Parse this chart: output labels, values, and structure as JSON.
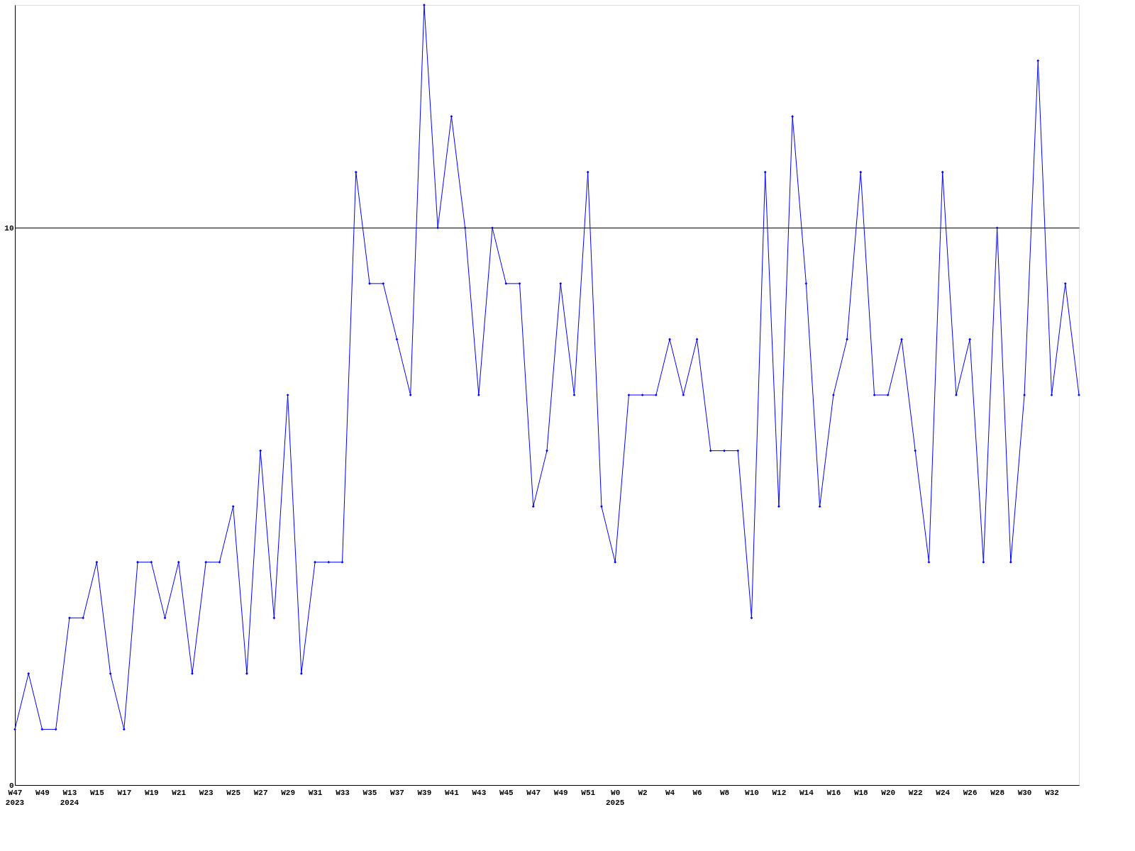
{
  "chart_data": {
    "type": "line",
    "categories": [
      "W47\n2023",
      null,
      "W49",
      null,
      "W13\n2024",
      null,
      "W15",
      null,
      "W17",
      null,
      "W19",
      null,
      "W21",
      null,
      "W23",
      null,
      "W25",
      null,
      "W27",
      null,
      "W29",
      null,
      "W31",
      null,
      "W33",
      null,
      "W35",
      null,
      "W37",
      null,
      "W39",
      null,
      "W41",
      null,
      "W43",
      null,
      "W45",
      null,
      "W47",
      null,
      "W49",
      null,
      "W51",
      null,
      "W0\n2025",
      null,
      "W2",
      null,
      "W4",
      null,
      "W6",
      null,
      "W8",
      null,
      "W10",
      null,
      "W12",
      null,
      "W14",
      null,
      "W16",
      null,
      "W18",
      null,
      "W20",
      null,
      "W22",
      null,
      "W24",
      null,
      "W26",
      null,
      "W28",
      null,
      "W30",
      null,
      "W32",
      null,
      null
    ],
    "series": [
      {
        "color": "#0000ff",
        "values": [
          1,
          2,
          1,
          1,
          3,
          3,
          4,
          2,
          1,
          4,
          4,
          3,
          4,
          2,
          4,
          4,
          5,
          2,
          6,
          3,
          7,
          2,
          4,
          4,
          4,
          11,
          9,
          9,
          8,
          7,
          14,
          10,
          12,
          10,
          7,
          10,
          9,
          9,
          5,
          6,
          9,
          7,
          11,
          5,
          4,
          7,
          7,
          7,
          8,
          7,
          8,
          6,
          6,
          6,
          3,
          11,
          5,
          12,
          9,
          5,
          7,
          8,
          11,
          7,
          7,
          8,
          6,
          4,
          11,
          7,
          8,
          4,
          10,
          4,
          7,
          13,
          7,
          9,
          7
        ]
      }
    ],
    "ylim": [
      0,
      14
    ],
    "yticks": [
      0,
      10
    ],
    "grid": "y",
    "marker": "diamond",
    "line_style": "solid"
  }
}
